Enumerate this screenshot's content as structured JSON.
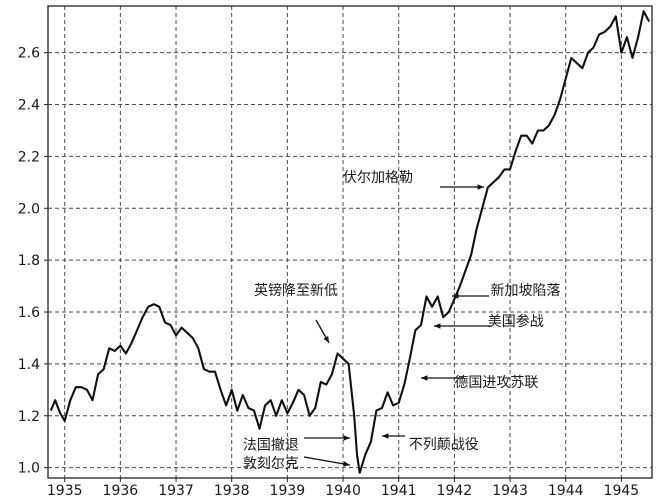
{
  "chart_data": {
    "type": "line",
    "title": "",
    "xlabel": "",
    "ylabel": "",
    "xlim": [
      1934.7,
      1945.55
    ],
    "ylim": [
      0.96,
      2.78
    ],
    "grid": true,
    "x_ticks": [
      1935,
      1936,
      1937,
      1938,
      1939,
      1940,
      1941,
      1942,
      1943,
      1944,
      1945
    ],
    "x_tick_labels": [
      "1935",
      "1936",
      "1937",
      "1938",
      "1939",
      "1940",
      "1941",
      "1942",
      "1943",
      "1944",
      "1945"
    ],
    "y_ticks": [
      1.0,
      1.2,
      1.4,
      1.6,
      1.8,
      2.0,
      2.2,
      2.4,
      2.6
    ],
    "y_tick_labels": [
      "1.0",
      "1.2",
      "1.4",
      "1.6",
      "1.8",
      "2.0",
      "2.2",
      "2.4",
      "2.6"
    ],
    "series": [
      {
        "x": [
          1934.75,
          1934.83,
          1934.92,
          1935.0,
          1935.1,
          1935.2,
          1935.3,
          1935.4,
          1935.5,
          1935.6,
          1935.7,
          1935.8,
          1935.9,
          1936.0,
          1936.1,
          1936.2,
          1936.3,
          1936.4,
          1936.5,
          1936.6,
          1936.7,
          1936.8,
          1936.9,
          1937.0,
          1937.1,
          1937.2,
          1937.3,
          1937.4,
          1937.5,
          1937.6,
          1937.7,
          1937.8,
          1937.9,
          1938.0,
          1938.1,
          1938.2,
          1938.3,
          1938.4,
          1938.5,
          1938.6,
          1938.7,
          1938.8,
          1938.9,
          1939.0,
          1939.1,
          1939.2,
          1939.3,
          1939.4,
          1939.5,
          1939.6,
          1939.7,
          1939.8,
          1939.9,
          1940.0,
          1940.1,
          1940.2,
          1940.25,
          1940.3,
          1940.4,
          1940.5,
          1940.6,
          1940.7,
          1940.8,
          1940.9,
          1941.0,
          1941.1,
          1941.2,
          1941.3,
          1941.4,
          1941.5,
          1941.6,
          1941.7,
          1941.8,
          1941.9,
          1942.0,
          1942.1,
          1942.2,
          1942.3,
          1942.4,
          1942.5,
          1942.6,
          1942.7,
          1942.8,
          1942.9,
          1943.0,
          1943.1,
          1943.2,
          1943.3,
          1943.4,
          1943.5,
          1943.6,
          1943.7,
          1943.8,
          1943.9,
          1944.0,
          1944.1,
          1944.2,
          1944.3,
          1944.4,
          1944.5,
          1944.6,
          1944.7,
          1944.8,
          1944.9,
          1945.0,
          1945.1,
          1945.2,
          1945.3,
          1945.4,
          1945.5
        ],
        "values": [
          1.22,
          1.26,
          1.21,
          1.18,
          1.26,
          1.31,
          1.31,
          1.3,
          1.26,
          1.36,
          1.38,
          1.46,
          1.45,
          1.47,
          1.44,
          1.48,
          1.53,
          1.58,
          1.62,
          1.63,
          1.62,
          1.56,
          1.55,
          1.51,
          1.54,
          1.52,
          1.5,
          1.46,
          1.38,
          1.37,
          1.37,
          1.3,
          1.24,
          1.3,
          1.22,
          1.28,
          1.23,
          1.22,
          1.15,
          1.24,
          1.26,
          1.2,
          1.26,
          1.21,
          1.25,
          1.3,
          1.28,
          1.2,
          1.23,
          1.33,
          1.32,
          1.36,
          1.44,
          1.42,
          1.4,
          1.2,
          1.05,
          0.98,
          1.05,
          1.1,
          1.22,
          1.23,
          1.29,
          1.24,
          1.25,
          1.32,
          1.42,
          1.53,
          1.55,
          1.66,
          1.62,
          1.66,
          1.58,
          1.6,
          1.65,
          1.7,
          1.76,
          1.82,
          1.92,
          2.0,
          2.08,
          2.1,
          2.12,
          2.15,
          2.15,
          2.22,
          2.28,
          2.28,
          2.25,
          2.3,
          2.3,
          2.32,
          2.36,
          2.42,
          2.5,
          2.58,
          2.56,
          2.54,
          2.6,
          2.62,
          2.67,
          2.68,
          2.7,
          2.74,
          2.6,
          2.66,
          2.58,
          2.66,
          2.76,
          2.72
        ]
      }
    ],
    "annotations": [
      {
        "label": "伏尔加格勒",
        "x": 1942.45,
        "y": 2.09,
        "tx": 1940.0,
        "ty": 2.102,
        "anchor": "start"
      },
      {
        "label": "新加坡陷落",
        "x": 1941.8,
        "y": 1.67,
        "tx": 1942.65,
        "ty": 1.666,
        "anchor": "start"
      },
      {
        "label": "英镑降至新低",
        "x": 1939.92,
        "y": 1.45,
        "tx": 1938.4,
        "ty": 1.666,
        "anchor": "start"
      },
      {
        "label": "美国参战",
        "x": 1941.5,
        "y": 1.55,
        "tx": 1942.6,
        "ty": 1.546,
        "anchor": "start"
      },
      {
        "label": "德国进攻苏联",
        "x": 1941.2,
        "y": 1.33,
        "tx": 1942.0,
        "ty": 1.31,
        "anchor": "start"
      },
      {
        "label": "法国撤退",
        "x": 1940.1,
        "y": 1.1,
        "tx": 1938.2,
        "ty": 1.07,
        "anchor": "start"
      },
      {
        "label": "不列颠战役",
        "x": 1940.5,
        "y": 1.1,
        "tx": 1941.18,
        "ty": 1.072,
        "anchor": "start"
      },
      {
        "label": "敦刻尔克",
        "x": 1940.2,
        "y": 1.0,
        "tx": 1938.2,
        "ty": 0.998,
        "anchor": "start"
      }
    ]
  }
}
